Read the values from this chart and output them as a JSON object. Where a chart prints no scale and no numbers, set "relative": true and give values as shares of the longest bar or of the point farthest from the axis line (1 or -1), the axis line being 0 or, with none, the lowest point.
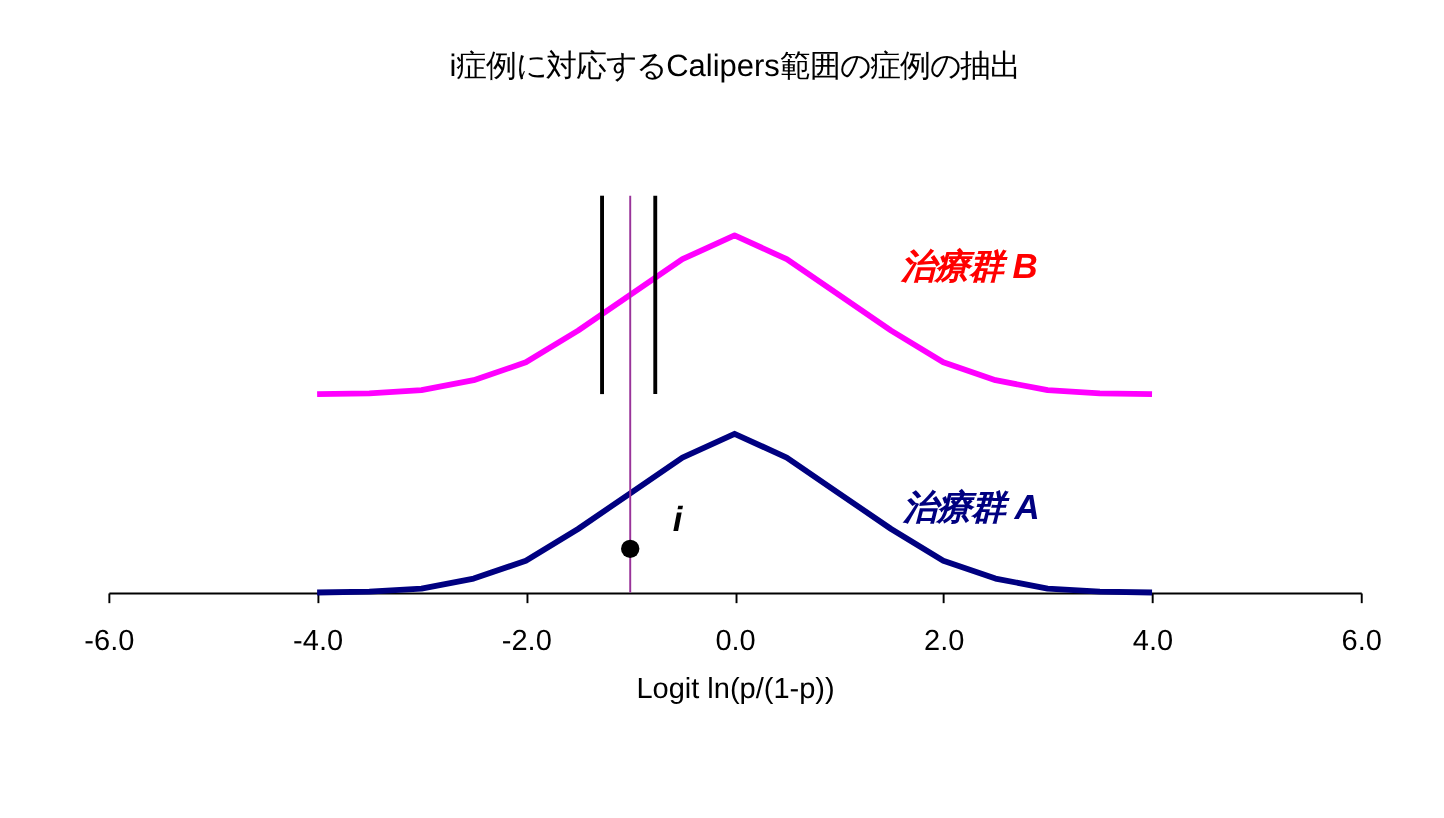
{
  "chart_data": {
    "type": "line",
    "title": "i症例に対応するCalipers範囲の症例の抽出",
    "xlabel": "Logit  ln(p/(1-p))",
    "relative": true,
    "xlim": [
      -6,
      6
    ],
    "xticks": [
      {
        "value": -6,
        "label": "-6.0"
      },
      {
        "value": -4,
        "label": "-4.0"
      },
      {
        "value": -2,
        "label": "-2.0"
      },
      {
        "value": 0,
        "label": "0.0"
      },
      {
        "value": 2,
        "label": "2.0"
      },
      {
        "value": 4,
        "label": "4.0"
      },
      {
        "value": 6,
        "label": "6.0"
      }
    ],
    "grid": false,
    "marker": "none",
    "line_style": "solid",
    "series": [
      {
        "name": "治療群  B",
        "color": "#ff00ff",
        "x": [
          -4,
          -3.5,
          -3,
          -2.5,
          -2,
          -1.5,
          -1,
          -0.5,
          0,
          0.5,
          1,
          1.5,
          2,
          2.5,
          3,
          3.5,
          4
        ],
        "values": [
          0.5,
          0.502,
          0.51,
          0.535,
          0.58,
          0.66,
          0.75,
          0.84,
          0.9,
          0.84,
          0.75,
          0.66,
          0.58,
          0.535,
          0.51,
          0.502,
          0.5
        ]
      },
      {
        "name": "治療群   A",
        "color": "#000080",
        "x": [
          -4,
          -3.5,
          -3,
          -2.5,
          -2,
          -1.5,
          -1,
          -0.5,
          0,
          0.5,
          1,
          1.5,
          2,
          2.5,
          3,
          3.5,
          4
        ],
        "values": [
          0,
          0.002,
          0.01,
          0.035,
          0.08,
          0.16,
          0.25,
          0.34,
          0.4,
          0.34,
          0.25,
          0.16,
          0.08,
          0.035,
          0.01,
          0.002,
          0
        ]
      },
      {
        "color": "#993399",
        "x": [
          -1,
          -1
        ],
        "values": [
          0,
          1
        ]
      },
      {
        "color": "#000000",
        "x": [
          -1.27,
          -1.27
        ],
        "values": [
          0.5,
          1
        ]
      },
      {
        "color": "#000000",
        "x": [
          -0.76,
          -0.76
        ],
        "values": [
          0.5,
          1
        ]
      },
      {
        "name": "i",
        "type": "scatter",
        "marker": "circle",
        "color": "#000000",
        "x": [
          -1
        ],
        "values": [
          0.11
        ]
      }
    ]
  }
}
